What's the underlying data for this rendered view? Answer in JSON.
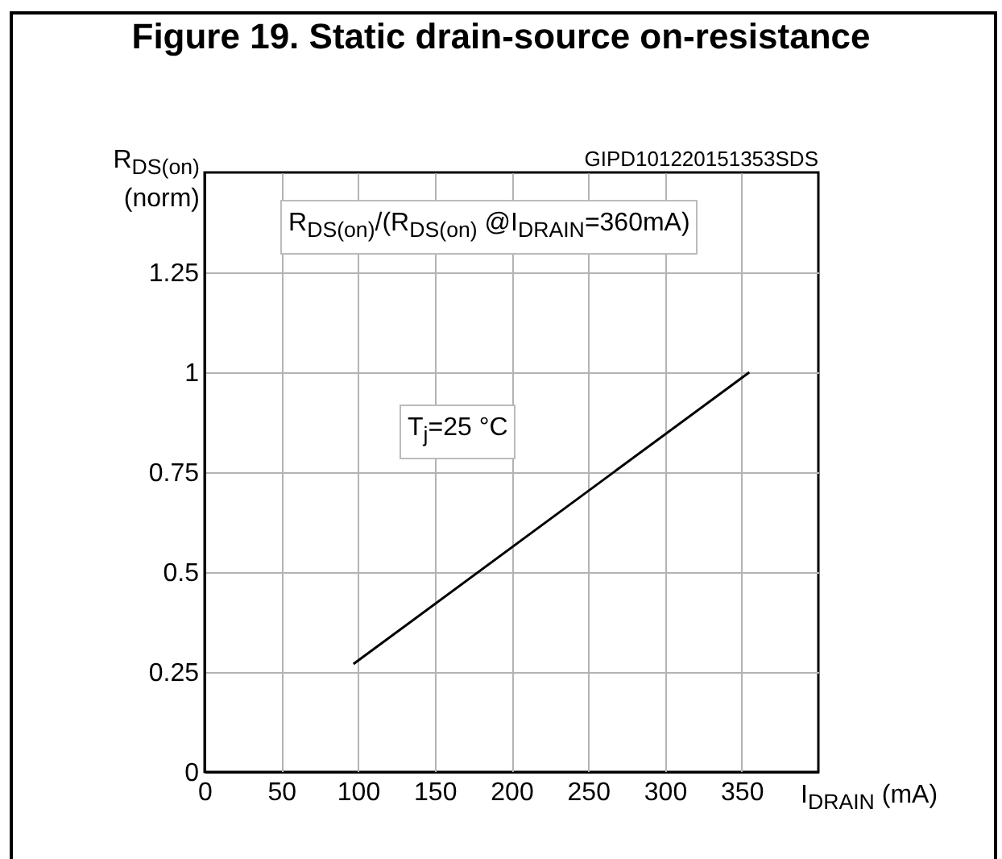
{
  "chart_data": {
    "type": "line",
    "title": "Figure 19. Static drain-source on-resistance",
    "xlabel": "I$_{DRAIN}$ (mA)",
    "ylabel": "R$_{DS(on)}$\n(norm)",
    "annotations": [
      "GIPD101220151353SDS",
      "R$_{DS(on)}$/(R$_{DS(on)}$ @I$_{DRAIN}$=360mA)",
      "T$_{j}$=25 °C"
    ],
    "x": [
      97,
      355
    ],
    "series": [
      {
        "color": "#000000",
        "values": [
          0.27,
          1.0
        ]
      }
    ],
    "xlim": [
      0,
      400
    ],
    "xticks": [
      0,
      50,
      100,
      150,
      200,
      250,
      300,
      350
    ],
    "ylim": [
      0,
      1.5
    ],
    "yticks": [
      0,
      0.25,
      0.5,
      0.75,
      1,
      1.25
    ],
    "grid": true,
    "marker": "none",
    "line_style": "solid"
  }
}
